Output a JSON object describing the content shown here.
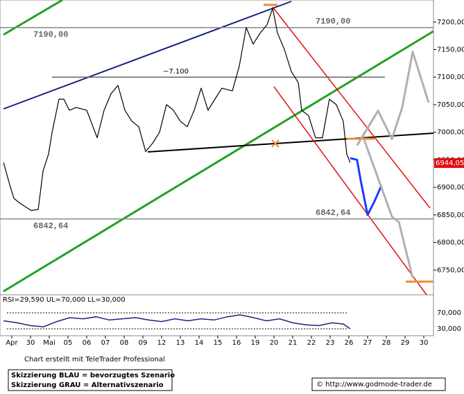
{
  "chart_data": {
    "type": "line",
    "categories": [
      "Apr",
      "30",
      "Mai",
      "05",
      "06",
      "07",
      "08",
      "09",
      "12",
      "13",
      "14",
      "15",
      "16",
      "19",
      "20",
      "21",
      "22",
      "23",
      "26",
      "27",
      "28",
      "29",
      "30"
    ],
    "xlim": [
      -0.63,
      22.52
    ],
    "ylim": [
      6705,
      7240
    ],
    "yticks": [
      {
        "value": 7200,
        "label": "7200,00"
      },
      {
        "value": 7150,
        "label": "7150,00"
      },
      {
        "value": 7100,
        "label": "7100,00"
      },
      {
        "value": 7050,
        "label": "7050,00"
      },
      {
        "value": 7000,
        "label": "7000,00"
      },
      {
        "value": 6950,
        "label": "6950,00"
      },
      {
        "value": 6900,
        "label": "6900,00"
      },
      {
        "value": 6850,
        "label": "6850,00"
      },
      {
        "value": 6800,
        "label": "6800,00"
      },
      {
        "value": 6750,
        "label": "6750,00"
      }
    ],
    "levels": [
      {
        "value": 7190,
        "label": "7190,00"
      },
      {
        "value": 7100,
        "label": "~7.100"
      },
      {
        "value": 6842.64,
        "label": "6842,64"
      }
    ],
    "last_price": {
      "value": 6944.05,
      "label": "6944,05"
    },
    "series": [
      {
        "name": "Kurs",
        "color": "#000000",
        "x": [
          -0.44,
          -0.07,
          0.11,
          0.48,
          1.04,
          1.41,
          1.67,
          1.96,
          2.15,
          2.52,
          2.78,
          3.07,
          3.44,
          4.0,
          4.56,
          4.93,
          5.3,
          5.67,
          6.04,
          6.41,
          6.78,
          7.15,
          7.52,
          7.89,
          8.26,
          8.63,
          9.0,
          9.37,
          9.74,
          10.11,
          10.48,
          10.85,
          11.22,
          11.78,
          12.15,
          12.52,
          12.89,
          13.26,
          13.63,
          13.93,
          14.19,
          14.56,
          14.93,
          15.3,
          15.48,
          15.85,
          16.22,
          16.59,
          16.96,
          17.33,
          17.7,
          17.89,
          18.07
        ],
        "values": [
          6945,
          6900,
          6880,
          6870,
          6858,
          6860,
          6930,
          6960,
          7000,
          7060,
          7060,
          7040,
          7045,
          7040,
          6990,
          7040,
          7070,
          7085,
          7040,
          7020,
          7010,
          6965,
          6980,
          7000,
          7050,
          7040,
          7020,
          7010,
          7040,
          7080,
          7040,
          7060,
          7080,
          7075,
          7120,
          7190,
          7160,
          7180,
          7195,
          7225,
          7180,
          7150,
          7110,
          7090,
          7040,
          7030,
          6990,
          6990,
          7060,
          7050,
          7020,
          6960,
          6945
        ]
      },
      {
        "name": "Skizzierung BLAU = bevorzugtes Szenario",
        "color": "#1a3cff",
        "x": [
          18.07,
          18.44,
          18.63,
          19.0,
          19.37,
          19.74
        ],
        "values": [
          6953,
          6950,
          6913,
          6850,
          6875,
          6903
        ]
      },
      {
        "name": "Skizzierung GRAU = Alternativszenario",
        "color": "#b0b0b0",
        "x": [
          18.44,
          19.56,
          20.3,
          20.85,
          21.41,
          22.26
        ],
        "values": [
          6976,
          7039,
          6988,
          7045,
          7146,
          7054
        ]
      },
      {
        "name": "Skizzierung GRAU = Alternativszenario",
        "color": "#b0b0b0",
        "x": [
          18.8,
          20.3,
          20.67,
          21.41
        ],
        "values": [
          6988,
          6847,
          6837,
          6736
        ]
      }
    ],
    "rsi": {
      "title": "RSI=29,590 UL=70,000 LL=30,000",
      "color": "#1a237e",
      "ylim": [
        12.6,
        110
      ],
      "yticks": [
        {
          "value": 70,
          "label": "70,000"
        },
        {
          "value": 30,
          "label": "30,000"
        }
      ],
      "x": [
        -0.44,
        0.3,
        1.0,
        1.7,
        2.4,
        3.1,
        3.8,
        4.5,
        5.2,
        5.9,
        6.6,
        7.3,
        8.0,
        8.7,
        9.4,
        10.1,
        10.8,
        11.5,
        12.2,
        12.9,
        13.6,
        14.3,
        15.0,
        15.7,
        16.4,
        17.1,
        17.7,
        18.07
      ],
      "values": [
        50,
        45,
        38,
        35,
        48,
        58,
        55,
        60,
        52,
        55,
        58,
        52,
        48,
        55,
        50,
        55,
        52,
        60,
        65,
        58,
        50,
        55,
        45,
        40,
        38,
        45,
        42,
        30
      ]
    },
    "credit": "Chart erstellt mit TeleTrader Professional",
    "legend_note": [
      "Skizzierung BLAU = bevorzugtes Szenario",
      "Skizzierung GRAU = Alternativszenario"
    ],
    "source": "© http://www.godmode-trader.de"
  }
}
